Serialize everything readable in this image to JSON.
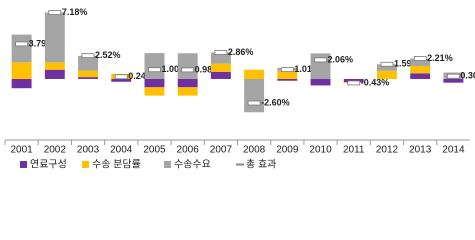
{
  "chart_data": {
    "type": "stacked-bar",
    "categories": [
      "2001",
      "2002",
      "2003",
      "2004",
      "2005",
      "2006",
      "2007",
      "2008",
      "2009",
      "2010",
      "2011",
      "2012",
      "2013",
      "2014"
    ],
    "series": [
      {
        "name": "연료구성",
        "color": "#7030a0",
        "values": [
          -1.0,
          1.0,
          0.2,
          -0.3,
          -0.9,
          -0.9,
          0.76,
          0,
          -0.19,
          -0.7,
          -0.35,
          0,
          0.61,
          -0.4
        ]
      },
      {
        "name": "수송 분담률",
        "color": "#ffc000",
        "values": [
          1.8,
          0.8,
          0.7,
          0.55,
          -0.9,
          -0.9,
          0.9,
          1.0,
          0.9,
          0,
          -0.08,
          0.89,
          0.8,
          0
        ]
      },
      {
        "name": "수송수요",
        "color": "#a5a5a5",
        "values": [
          3.0,
          5.4,
          1.6,
          0,
          2.8,
          2.78,
          1.2,
          -3.6,
          0.3,
          2.76,
          0,
          0.7,
          0.8,
          0.7
        ]
      }
    ],
    "total": {
      "name": "총 효과",
      "values": [
        3.79,
        7.18,
        2.52,
        0.24,
        1.0,
        0.98,
        2.86,
        -2.6,
        1.01,
        2.06,
        -0.43,
        1.59,
        2.21,
        0.3
      ],
      "value_labels": [
        "3.79%",
        "7.18%",
        "2.52%",
        "0.24%",
        "1.00%",
        "0.98%",
        "2.86%",
        "-2.60%",
        "1.01%",
        "2.06%",
        "-0.43%",
        "1.59%",
        "2.21%",
        "0.30%"
      ],
      "negative_color": "#e02020"
    },
    "ylim": [
      -6.6,
      8.0
    ]
  }
}
